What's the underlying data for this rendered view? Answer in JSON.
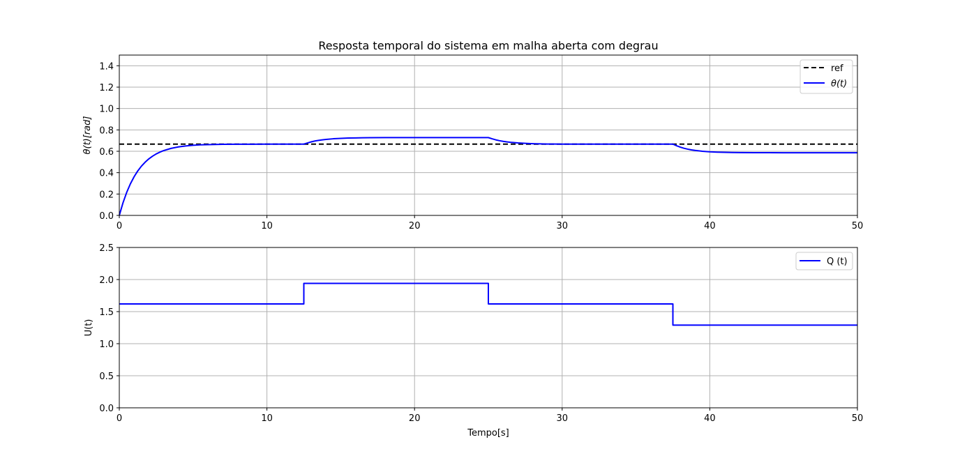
{
  "chart_data": [
    {
      "type": "line",
      "title": "Resposta temporal do sistema em malha aberta com degrau",
      "xlabel": "",
      "ylabel": "θ(t)[rad]",
      "xlim": [
        0,
        50
      ],
      "ylim": [
        0,
        1.5
      ],
      "xticks": [
        0,
        10,
        20,
        30,
        40,
        50
      ],
      "yticks": [
        0.0,
        0.2,
        0.4,
        0.6,
        0.8,
        1.0,
        1.2,
        1.4
      ],
      "xtick_labels": [
        "0",
        "10",
        "20",
        "30",
        "40",
        "50"
      ],
      "ytick_labels": [
        "0.0",
        "0.2",
        "0.4",
        "0.6",
        "0.8",
        "1.0",
        "1.2",
        "1.4"
      ],
      "grid": true,
      "legend_position": "top-right",
      "series": [
        {
          "name": "ref",
          "color": "#000000",
          "style": "dashed",
          "x": [
            0,
            50
          ],
          "y": [
            0.667,
            0.667
          ]
        },
        {
          "name": "θ(t)",
          "color": "#0000ff",
          "style": "solid",
          "x": [
            0,
            0.25,
            0.5,
            0.75,
            1,
            1.25,
            1.5,
            1.75,
            2,
            2.25,
            2.5,
            2.75,
            3,
            3.5,
            4,
            4.5,
            5,
            5.5,
            6,
            7,
            8,
            9,
            10,
            11,
            12,
            12.5,
            12.75,
            13,
            13.25,
            13.5,
            13.75,
            14,
            14.5,
            15,
            15.5,
            16,
            16.5,
            17,
            18,
            19,
            20,
            21,
            22,
            23,
            24,
            25,
            25.25,
            25.5,
            25.75,
            26,
            26.25,
            26.5,
            27,
            27.5,
            28,
            28.5,
            29,
            29.5,
            30,
            31,
            32,
            33,
            34,
            35,
            36,
            37,
            37.5,
            37.75,
            38,
            38.25,
            38.5,
            38.75,
            39,
            39.5,
            40,
            40.5,
            41,
            41.5,
            42,
            43,
            44,
            45,
            46,
            47,
            48,
            49,
            50
          ],
          "y": [
            0,
            0.118,
            0.215,
            0.295,
            0.361,
            0.416,
            0.461,
            0.498,
            0.529,
            0.554,
            0.575,
            0.592,
            0.606,
            0.627,
            0.641,
            0.65,
            0.656,
            0.66,
            0.662,
            0.665,
            0.666,
            0.666,
            0.667,
            0.667,
            0.667,
            0.667,
            0.678,
            0.688,
            0.696,
            0.702,
            0.707,
            0.711,
            0.717,
            0.721,
            0.724,
            0.725,
            0.726,
            0.727,
            0.728,
            0.728,
            0.728,
            0.728,
            0.728,
            0.728,
            0.728,
            0.728,
            0.717,
            0.707,
            0.699,
            0.693,
            0.688,
            0.684,
            0.678,
            0.674,
            0.671,
            0.669,
            0.668,
            0.668,
            0.667,
            0.667,
            0.667,
            0.667,
            0.667,
            0.667,
            0.667,
            0.667,
            0.667,
            0.652,
            0.639,
            0.628,
            0.62,
            0.613,
            0.608,
            0.6,
            0.595,
            0.592,
            0.59,
            0.589,
            0.588,
            0.587,
            0.587,
            0.586,
            0.586,
            0.586,
            0.586,
            0.586,
            0.586
          ]
        }
      ]
    },
    {
      "type": "line",
      "title": "",
      "xlabel": "Tempo[s]",
      "ylabel": "U(t)",
      "xlim": [
        0,
        50
      ],
      "ylim": [
        0,
        2.5
      ],
      "xticks": [
        0,
        10,
        20,
        30,
        40,
        50
      ],
      "yticks": [
        0.0,
        0.5,
        1.0,
        1.5,
        2.0,
        2.5
      ],
      "xtick_labels": [
        "0",
        "10",
        "20",
        "30",
        "40",
        "50"
      ],
      "ytick_labels": [
        "0.0",
        "0.5",
        "1.0",
        "1.5",
        "2.0",
        "2.5"
      ],
      "grid": true,
      "legend_position": "top-right",
      "series": [
        {
          "name": "Q (t)",
          "color": "#0000ff",
          "style": "solid",
          "x": [
            0,
            12.5,
            12.5,
            25,
            25,
            37.5,
            37.5,
            50
          ],
          "y": [
            1.62,
            1.62,
            1.94,
            1.94,
            1.62,
            1.62,
            1.29,
            1.29
          ]
        }
      ]
    }
  ]
}
